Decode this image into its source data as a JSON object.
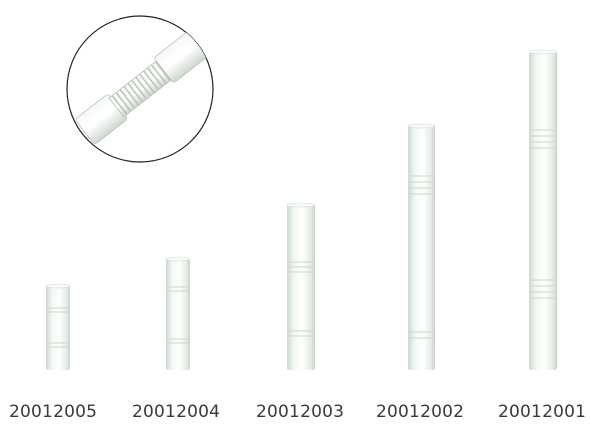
{
  "image": {
    "subject": "white PTFE couplings of increasing length with detail inset of threaded coupling",
    "background_color": "#ffffff",
    "rod_color": "#eef3ee"
  },
  "products": [
    {
      "part_number": "20012005"
    },
    {
      "part_number": "20012004"
    },
    {
      "part_number": "20012003"
    },
    {
      "part_number": "20012002"
    },
    {
      "part_number": "20012001"
    }
  ]
}
